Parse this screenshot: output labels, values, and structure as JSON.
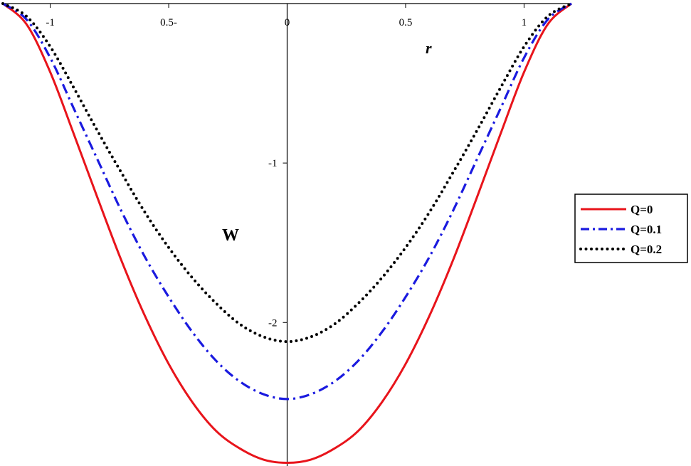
{
  "chart_data": {
    "type": "line",
    "xlabel": "r",
    "ylabel": "W",
    "xlim": [
      -1.2,
      1.2
    ],
    "ylim": [
      -2.9,
      0
    ],
    "x_ticks": [
      {
        "value": -1,
        "label": "-1"
      },
      {
        "value": -0.5,
        "label": "0.5-"
      },
      {
        "value": 0,
        "label": "0"
      },
      {
        "value": 0.5,
        "label": "0.5"
      },
      {
        "value": 1,
        "label": "1"
      }
    ],
    "y_ticks": [
      {
        "value": -1,
        "label": "-1"
      },
      {
        "value": -2,
        "label": "-2"
      }
    ],
    "grid": false,
    "legend_position": "right",
    "series": [
      {
        "name": "Q=0",
        "color": "#e8141b",
        "style": "solid",
        "x": [
          -1.2,
          -1.1,
          -1.0,
          -0.9,
          -0.8,
          -0.7,
          -0.6,
          -0.5,
          -0.4,
          -0.3,
          -0.2,
          -0.1,
          0.0,
          0.1,
          0.2,
          0.3,
          0.4,
          0.5,
          0.6,
          0.7,
          0.8,
          0.9,
          1.0,
          1.1,
          1.2
        ],
        "y": [
          0.0,
          -0.13,
          -0.43,
          -0.82,
          -1.22,
          -1.61,
          -1.96,
          -2.26,
          -2.5,
          -2.68,
          -2.79,
          -2.86,
          -2.88,
          -2.86,
          -2.79,
          -2.68,
          -2.5,
          -2.26,
          -1.96,
          -1.61,
          -1.22,
          -0.82,
          -0.43,
          -0.13,
          0.0
        ]
      },
      {
        "name": "Q=0.1",
        "color": "#1a1adf",
        "style": "dashdot",
        "x": [
          -1.2,
          -1.1,
          -1.0,
          -0.9,
          -0.8,
          -0.7,
          -0.6,
          -0.5,
          -0.4,
          -0.3,
          -0.2,
          -0.1,
          0.0,
          0.1,
          0.2,
          0.3,
          0.4,
          0.5,
          0.6,
          0.7,
          0.8,
          0.9,
          1.0,
          1.1,
          1.2
        ],
        "y": [
          0.0,
          -0.1,
          -0.34,
          -0.66,
          -0.98,
          -1.3,
          -1.59,
          -1.84,
          -2.06,
          -2.24,
          -2.37,
          -2.45,
          -2.48,
          -2.45,
          -2.37,
          -2.24,
          -2.06,
          -1.84,
          -1.59,
          -1.3,
          -0.98,
          -0.66,
          -0.34,
          -0.1,
          0.0
        ]
      },
      {
        "name": "Q=0.2",
        "color": "#000000",
        "style": "dotted",
        "x": [
          -1.2,
          -1.1,
          -1.0,
          -0.9,
          -0.8,
          -0.7,
          -0.6,
          -0.5,
          -0.4,
          -0.3,
          -0.2,
          -0.1,
          0.0,
          0.1,
          0.2,
          0.3,
          0.4,
          0.5,
          0.6,
          0.7,
          0.8,
          0.9,
          1.0,
          1.1,
          1.2
        ],
        "y": [
          0.0,
          -0.08,
          -0.27,
          -0.53,
          -0.8,
          -1.06,
          -1.31,
          -1.53,
          -1.72,
          -1.88,
          -2.01,
          -2.09,
          -2.12,
          -2.09,
          -2.01,
          -1.88,
          -1.72,
          -1.53,
          -1.31,
          -1.06,
          -0.8,
          -0.53,
          -0.27,
          -0.08,
          0.0
        ]
      }
    ]
  }
}
